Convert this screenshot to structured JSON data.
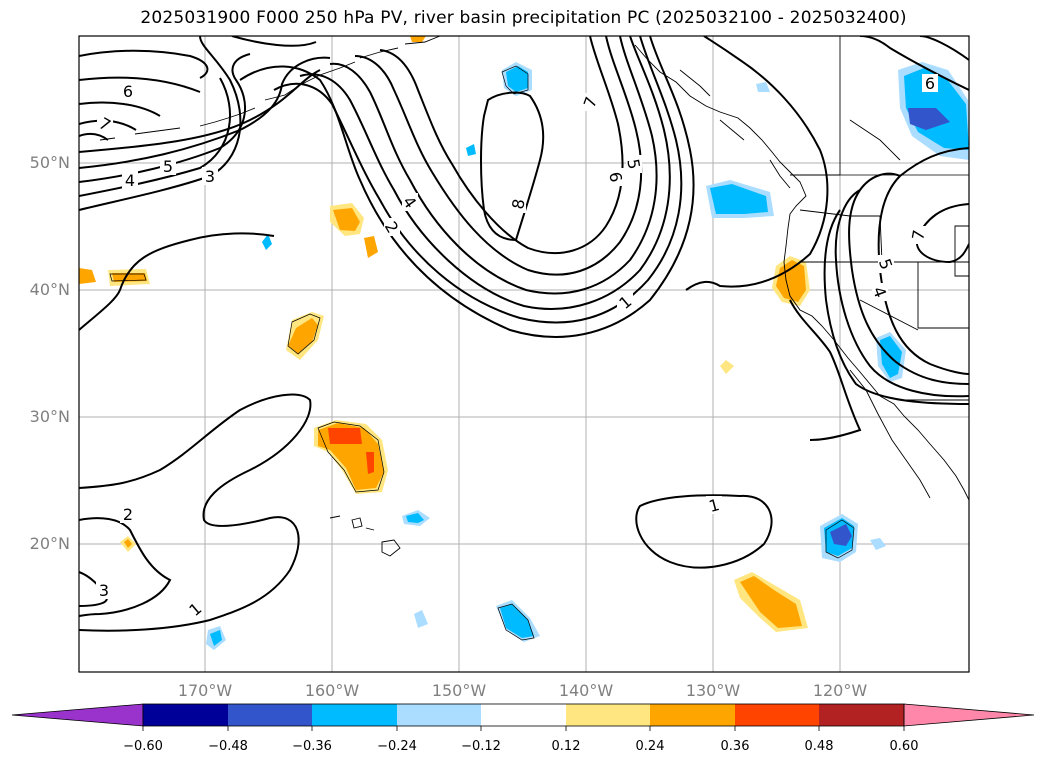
{
  "title": "2025031900 F000 250 hPa PV, river basin precipitation PC (2025032100 - 2025032400)",
  "map": {
    "lat_ticks": [
      "20°N",
      "30°N",
      "40°N",
      "50°N"
    ],
    "lon_ticks": [
      "170°W",
      "160°W",
      "150°W",
      "140°W",
      "130°W",
      "120°W"
    ],
    "contour_labels": [
      "6",
      "7",
      "5",
      "4",
      "3",
      "2",
      "4",
      "8",
      "7",
      "5",
      "6",
      "1",
      "6",
      "7",
      "5",
      "4",
      "2",
      "3",
      "1",
      "1"
    ]
  },
  "colorbar": {
    "colors": [
      "#9933cc",
      "#000099",
      "#3355cc",
      "#00bbff",
      "#aaddff",
      "#ffffff",
      "#ffe680",
      "#ffa500",
      "#ff4400",
      "#b22222",
      "#ff88aa"
    ],
    "tick_labels": [
      "−0.60",
      "−0.48",
      "−0.36",
      "−0.24",
      "−0.12",
      "0.12",
      "0.24",
      "0.36",
      "0.48",
      "0.60"
    ]
  },
  "colors": {
    "gridline": "#b0b0b0",
    "contour": "#000000",
    "coast": "#000000"
  }
}
